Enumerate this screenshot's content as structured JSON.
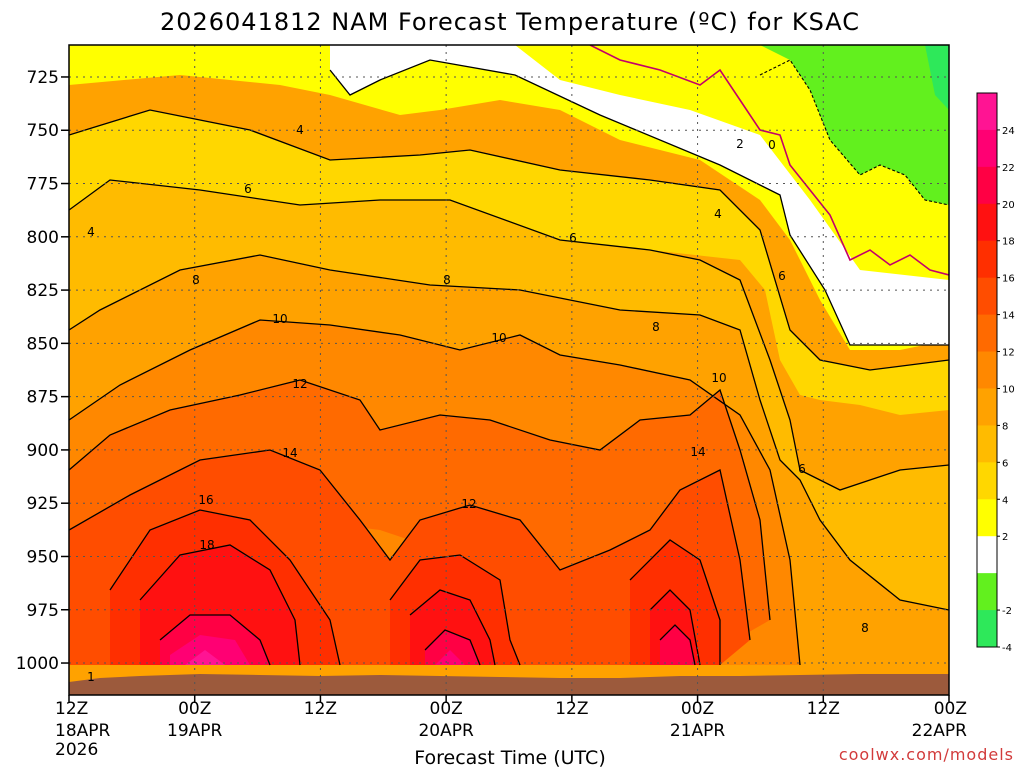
{
  "header": {
    "title": "2026041812 NAM Forecast Temperature (ºC) for KSAC"
  },
  "footer": {
    "credit": "coolwx.com/models"
  },
  "colors": {
    "ground": "#9c5a3c",
    "neg4": "#2ee85a",
    "neg2": "#62f01e",
    "zero": "#ffffff",
    "2": "#ffff00",
    "4": "#ffd700",
    "6": "#ffbb00",
    "8": "#ffa200",
    "10": "#ff8800",
    "12": "#ff6a00",
    "14": "#ff4d00",
    "16": "#ff2f00",
    "18": "#ff1111",
    "20": "#ff0044",
    "22": "#ff0073",
    "24": "#ff1493",
    "freezing_line": "#c4006a"
  },
  "chart_data": {
    "type": "contour",
    "title": "2026041812 NAM Forecast Temperature (ºC) for KSAC",
    "xlabel": "Forecast Time (UTC)",
    "ylabel": "",
    "ylim": [
      1015,
      710
    ],
    "xlim_hours": [
      0,
      84
    ],
    "yticks": [
      "725",
      "750",
      "775",
      "800",
      "825",
      "850",
      "875",
      "900",
      "925",
      "950",
      "975",
      "1000"
    ],
    "xticks": [
      {
        "label": "12Z",
        "date": "18APR",
        "year": "2026"
      },
      {
        "label": "00Z",
        "date": "19APR",
        "year": ""
      },
      {
        "label": "12Z",
        "date": "",
        "year": ""
      },
      {
        "label": "00Z",
        "date": "20APR",
        "year": ""
      },
      {
        "label": "12Z",
        "date": "",
        "year": ""
      },
      {
        "label": "00Z",
        "date": "21APR",
        "year": ""
      },
      {
        "label": "12Z",
        "date": "",
        "year": ""
      },
      {
        "label": "00Z",
        "date": "22APR",
        "year": ""
      }
    ],
    "colorbar": {
      "ticks": [
        "24",
        "22",
        "20",
        "18",
        "16",
        "14",
        "12",
        "10",
        "8",
        "6",
        "4",
        "2",
        "-2",
        "-4"
      ]
    },
    "contour_labels": [
      "4",
      "6",
      "8",
      "10",
      "12",
      "14",
      "16",
      "18",
      "2",
      "0",
      "4",
      "6",
      "8",
      "10",
      "12",
      "14",
      "10",
      "8",
      "6",
      "4",
      "6",
      "8",
      "1"
    ],
    "grid": true
  }
}
